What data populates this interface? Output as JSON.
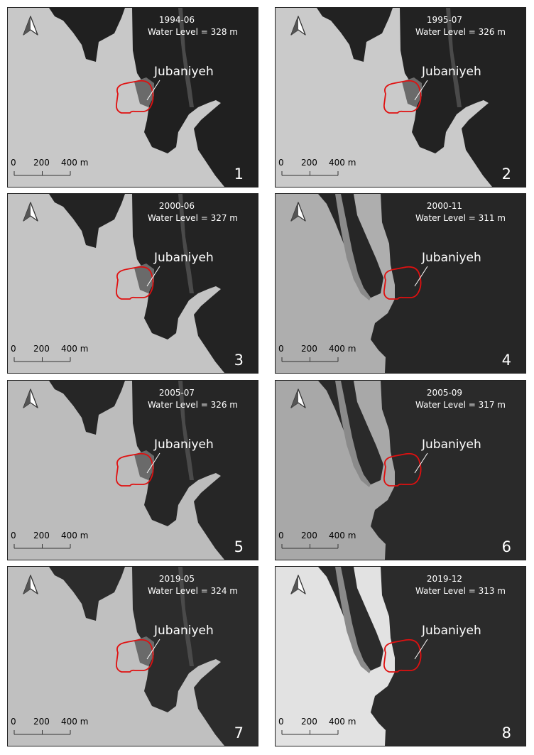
{
  "colors": {
    "water": "#1e1e1e",
    "land": "#c2c2c2",
    "outline": "#e01010"
  },
  "site_name": "Jubaniyeh",
  "scale_bar": {
    "unit": "m",
    "labels": [
      "0",
      "200",
      "400 m"
    ]
  },
  "panels": [
    {
      "number": "1",
      "date": "1994-06",
      "water_level_label": "Water Level = 328 m",
      "water_level_m": 328
    },
    {
      "number": "2",
      "date": "1995-07",
      "water_level_label": "Water Level = 326 m",
      "water_level_m": 326
    },
    {
      "number": "3",
      "date": "2000-06",
      "water_level_label": "Water Level = 327 m",
      "water_level_m": 327
    },
    {
      "number": "4",
      "date": "2000-11",
      "water_level_label": "Water Level = 311 m",
      "water_level_m": 311
    },
    {
      "number": "5",
      "date": "2005-07",
      "water_level_label": "Water Level = 326 m",
      "water_level_m": 326
    },
    {
      "number": "6",
      "date": "2005-09",
      "water_level_label": "Water Level = 317 m",
      "water_level_m": 317
    },
    {
      "number": "7",
      "date": "2019-05",
      "water_level_label": "Water Level = 324 m",
      "water_level_m": 324
    },
    {
      "number": "8",
      "date": "2019-12",
      "water_level_label": "Water Level = 313 m",
      "water_level_m": 313
    }
  ]
}
